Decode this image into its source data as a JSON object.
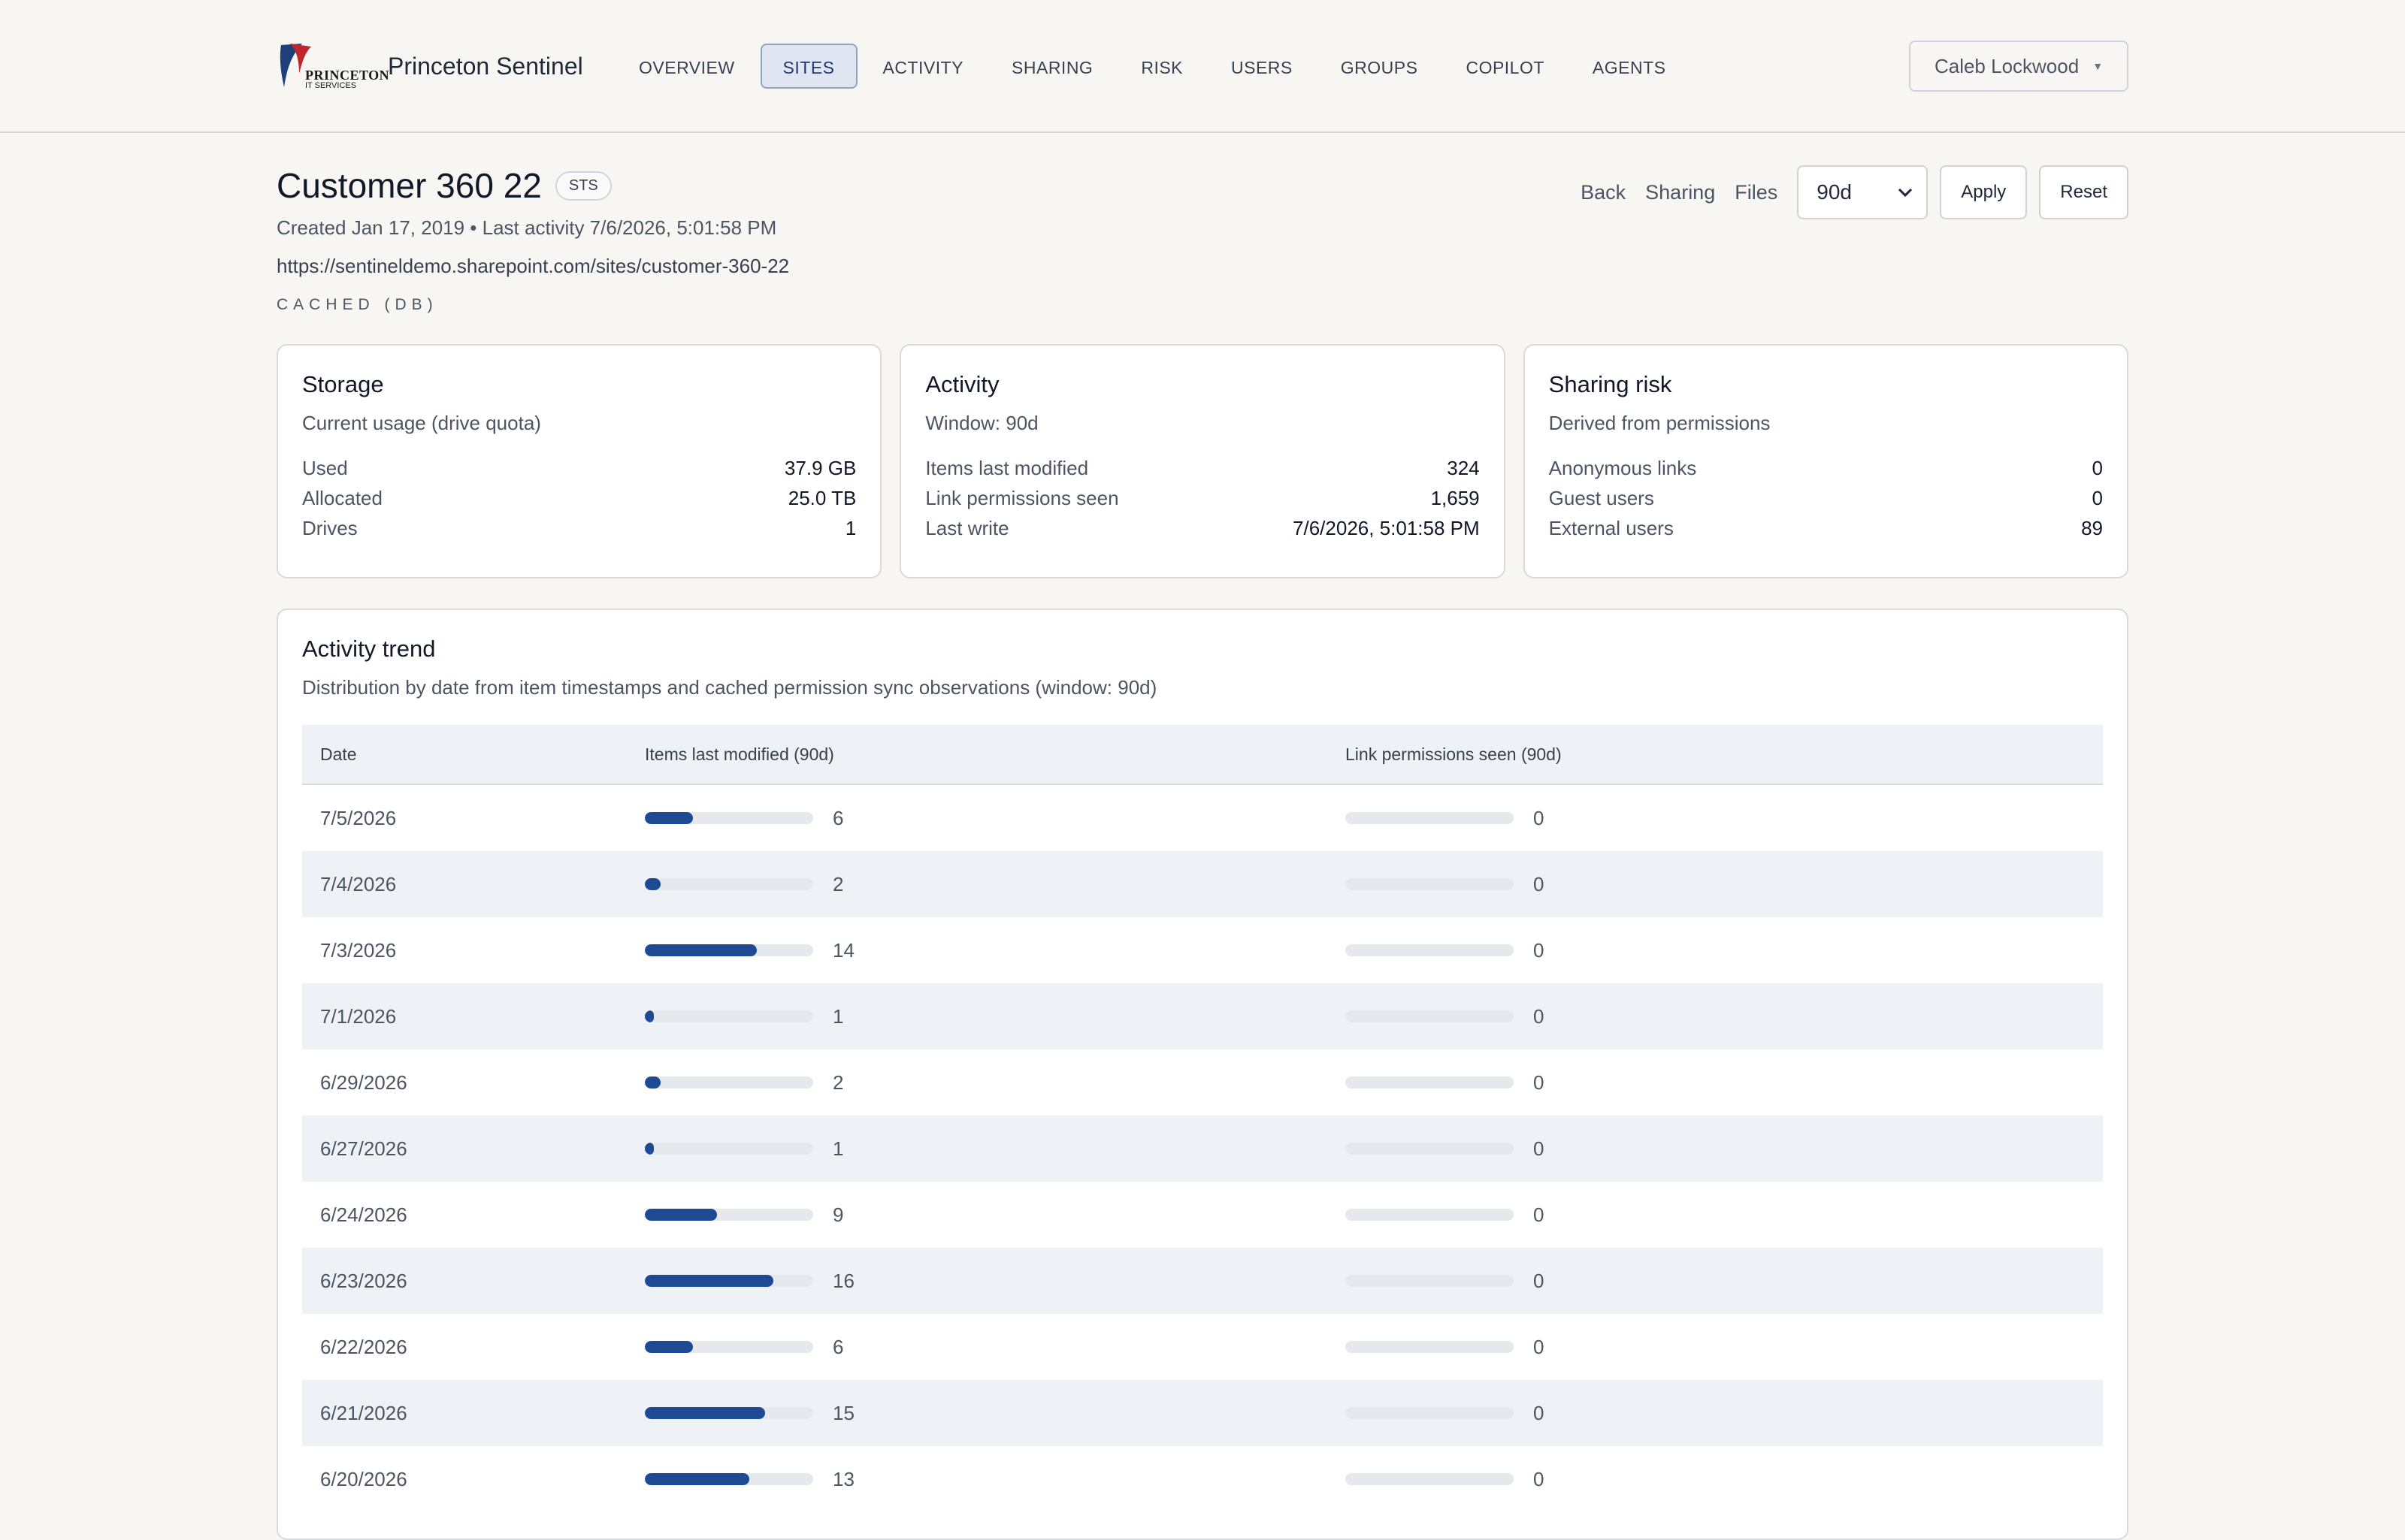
{
  "app": {
    "brand_name": "Princeton Sentinel",
    "logo_text": "PRINCETON",
    "logo_sub": "IT SERVICES",
    "user": "Caleb Lockwood"
  },
  "nav": [
    {
      "label": "OVERVIEW"
    },
    {
      "label": "SITES",
      "active": true
    },
    {
      "label": "ACTIVITY"
    },
    {
      "label": "SHARING"
    },
    {
      "label": "RISK"
    },
    {
      "label": "USERS"
    },
    {
      "label": "GROUPS"
    },
    {
      "label": "COPILOT"
    },
    {
      "label": "AGENTS"
    }
  ],
  "page": {
    "title": "Customer 360 22",
    "badge": "STS",
    "meta": "Created Jan 17, 2019 • Last activity 7/6/2026, 5:01:58 PM",
    "url": "https://sentineldemo.sharepoint.com/sites/customer-360-22",
    "cached": "CACHED (DB)",
    "actions": {
      "back": "Back",
      "sharing": "Sharing",
      "files": "Files",
      "window_value": "90d",
      "apply": "Apply",
      "reset": "Reset"
    }
  },
  "cards": {
    "storage": {
      "title": "Storage",
      "subtitle": "Current usage (drive quota)",
      "rows": [
        {
          "key": "Used",
          "value": "37.9 GB"
        },
        {
          "key": "Allocated",
          "value": "25.0 TB"
        },
        {
          "key": "Drives",
          "value": "1"
        }
      ]
    },
    "activity": {
      "title": "Activity",
      "subtitle": "Window: 90d",
      "rows": [
        {
          "key": "Items last modified",
          "value": "324"
        },
        {
          "key": "Link permissions seen",
          "value": "1,659"
        },
        {
          "key": "Last write",
          "value": "7/6/2026, 5:01:58 PM"
        }
      ]
    },
    "sharing": {
      "title": "Sharing risk",
      "subtitle": "Derived from permissions",
      "rows": [
        {
          "key": "Anonymous links",
          "value": "0"
        },
        {
          "key": "Guest users",
          "value": "0"
        },
        {
          "key": "External users",
          "value": "89"
        }
      ]
    }
  },
  "trend": {
    "title": "Activity trend",
    "subtitle": "Distribution by date from item timestamps and cached permission sync observations (window: 90d)",
    "columns": [
      "Date",
      "Items last modified (90d)",
      "Link permissions seen (90d)"
    ],
    "scale_max": 21,
    "rows": [
      {
        "date": "7/5/2026",
        "items": 6,
        "links": 0
      },
      {
        "date": "7/4/2026",
        "items": 2,
        "links": 0
      },
      {
        "date": "7/3/2026",
        "items": 14,
        "links": 0
      },
      {
        "date": "7/1/2026",
        "items": 1,
        "links": 0
      },
      {
        "date": "6/29/2026",
        "items": 2,
        "links": 0
      },
      {
        "date": "6/27/2026",
        "items": 1,
        "links": 0
      },
      {
        "date": "6/24/2026",
        "items": 9,
        "links": 0
      },
      {
        "date": "6/23/2026",
        "items": 16,
        "links": 0
      },
      {
        "date": "6/22/2026",
        "items": 6,
        "links": 0
      },
      {
        "date": "6/21/2026",
        "items": 15,
        "links": 0
      },
      {
        "date": "6/20/2026",
        "items": 13,
        "links": 0
      }
    ]
  }
}
